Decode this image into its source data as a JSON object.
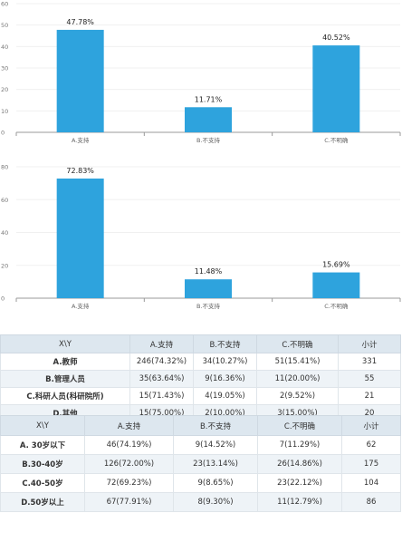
{
  "chart_data": [
    {
      "type": "bar",
      "categories": [
        "A.支持",
        "B.不支持",
        "C.不明确"
      ],
      "values": [
        47.78,
        11.71,
        40.52
      ],
      "value_labels": [
        "47.78%",
        "11.71%",
        "40.52%"
      ],
      "ylim": [
        0,
        60
      ],
      "yticks": [
        0,
        10,
        20,
        30,
        40,
        50,
        60
      ],
      "ytick_labels": [
        "0",
        "10",
        "20",
        "30",
        "40",
        "50",
        "60"
      ],
      "bar_color": "#2ea3dd"
    },
    {
      "type": "bar",
      "categories": [
        "A.支持",
        "B.不支持",
        "C.不明确"
      ],
      "values": [
        72.83,
        11.48,
        15.69
      ],
      "value_labels": [
        "72.83%",
        "11.48%",
        "15.69%"
      ],
      "ylim": [
        0,
        80
      ],
      "yticks": [
        0,
        20,
        40,
        60,
        80
      ],
      "ytick_labels": [
        "0",
        "20",
        "40",
        "60",
        "80"
      ],
      "bar_color": "#2ea3dd"
    }
  ],
  "tables": [
    {
      "headers": [
        "X\\Y",
        "A.支持",
        "B.不支持",
        "C.不明确",
        "小计"
      ],
      "rows": [
        [
          "A.教师",
          "246(74.32%)",
          "34(10.27%)",
          "51(15.41%)",
          "331"
        ],
        [
          "B.管理人员",
          "35(63.64%)",
          "9(16.36%)",
          "11(20.00%)",
          "55"
        ],
        [
          "C.科研人员(科研院所)",
          "15(71.43%)",
          "4(19.05%)",
          "2(9.52%)",
          "21"
        ],
        [
          "D.其他",
          "15(75.00%)",
          "2(10.00%)",
          "3(15.00%)",
          "20"
        ]
      ]
    },
    {
      "headers": [
        "X\\Y",
        "A.支持",
        "B.不支持",
        "C.不明确",
        "小计"
      ],
      "rows": [
        [
          "A. 30岁以下",
          "46(74.19%)",
          "9(14.52%)",
          "7(11.29%)",
          "62"
        ],
        [
          "B.30-40岁",
          "126(72.00%)",
          "23(13.14%)",
          "26(14.86%)",
          "175"
        ],
        [
          "C.40-50岁",
          "72(69.23%)",
          "9(8.65%)",
          "23(22.12%)",
          "104"
        ],
        [
          "D.50岁以上",
          "67(77.91%)",
          "8(9.30%)",
          "11(12.79%)",
          "86"
        ]
      ]
    }
  ]
}
